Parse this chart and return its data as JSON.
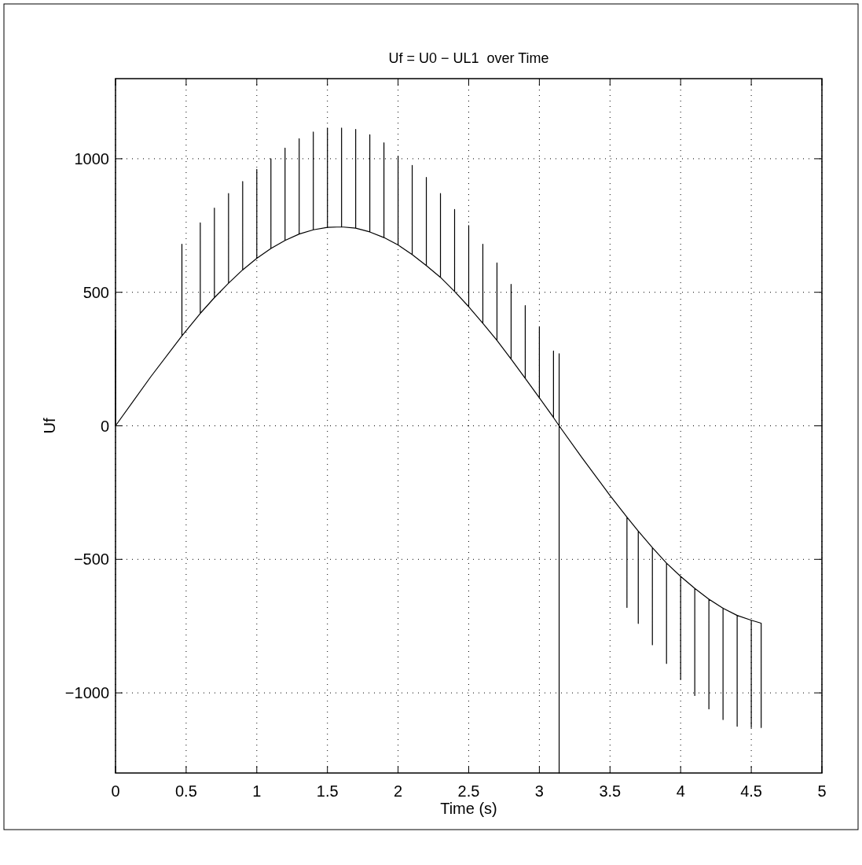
{
  "chart_data": {
    "type": "line",
    "title": "Uf = U0 − UL1  over Time",
    "xlabel": "Time (s)",
    "ylabel": "Uf",
    "xlim": [
      0,
      5
    ],
    "ylim": [
      -1300,
      1300
    ],
    "xticks": [
      0,
      0.5,
      1,
      1.5,
      2,
      2.5,
      3,
      3.5,
      4,
      4.5,
      5
    ],
    "yticks": [
      -1000,
      -500,
      0,
      500,
      1000
    ],
    "grid": true,
    "line_style": "solid",
    "marker": "none",
    "series": [
      {
        "color": "#000000",
        "x": [
          0,
          0,
          0.25,
          0.47,
          0.47,
          0.47,
          0.6,
          0.6,
          0.6,
          0.7,
          0.7,
          0.7,
          0.8,
          0.8,
          0.8,
          0.9,
          0.9,
          0.9,
          1.0,
          1.0,
          1.0,
          1.1,
          1.1,
          1.1,
          1.2,
          1.2,
          1.2,
          1.3,
          1.3,
          1.3,
          1.4,
          1.4,
          1.4,
          1.5,
          1.5,
          1.5,
          1.6,
          1.6,
          1.6,
          1.7,
          1.7,
          1.7,
          1.8,
          1.8,
          1.8,
          1.9,
          1.9,
          1.9,
          2.0,
          2.0,
          2.0,
          2.1,
          2.1,
          2.1,
          2.2,
          2.2,
          2.2,
          2.3,
          2.3,
          2.3,
          2.4,
          2.4,
          2.4,
          2.5,
          2.5,
          2.5,
          2.6,
          2.6,
          2.6,
          2.7,
          2.7,
          2.7,
          2.8,
          2.8,
          2.8,
          2.9,
          2.9,
          2.9,
          3.0,
          3.0,
          3.0,
          3.1,
          3.1,
          3.1,
          3.14,
          3.14,
          3.14,
          3.14,
          3.3,
          3.5,
          3.62,
          3.62,
          3.62,
          3.7,
          3.7,
          3.7,
          3.8,
          3.8,
          3.8,
          3.9,
          3.9,
          3.9,
          4.0,
          4.0,
          4.0,
          4.1,
          4.1,
          4.1,
          4.2,
          4.2,
          4.2,
          4.3,
          4.3,
          4.3,
          4.4,
          4.4,
          4.4,
          4.5,
          4.5,
          4.5,
          4.57,
          4.57,
          4.57
        ],
        "values": [
          360,
          0,
          184,
          337,
          680,
          337,
          421,
          760,
          421,
          480,
          815,
          480,
          534,
          870,
          534,
          584,
          915,
          584,
          627,
          960,
          627,
          664,
          1000,
          664,
          694,
          1040,
          694,
          718,
          1075,
          718,
          734,
          1100,
          734,
          743,
          1115,
          743,
          745,
          1115,
          745,
          740,
          1110,
          740,
          726,
          1090,
          726,
          705,
          1060,
          705,
          677,
          1010,
          677,
          641,
          975,
          641,
          600,
          930,
          600,
          556,
          870,
          556,
          503,
          810,
          503,
          446,
          750,
          446,
          384,
          680,
          384,
          320,
          610,
          320,
          250,
          530,
          250,
          178,
          450,
          178,
          105,
          370,
          105,
          31,
          280,
          31,
          0,
          270,
          -1300,
          0,
          -118,
          -261,
          -342,
          -680,
          -342,
          -394,
          -740,
          -394,
          -456,
          -820,
          -456,
          -514,
          -890,
          -514,
          -564,
          -950,
          -564,
          -609,
          -1010,
          -609,
          -649,
          -1060,
          -649,
          -683,
          -1100,
          -683,
          -710,
          -1125,
          -710,
          -728,
          -1130,
          -728,
          -739,
          -1130,
          -739
        ]
      }
    ]
  }
}
